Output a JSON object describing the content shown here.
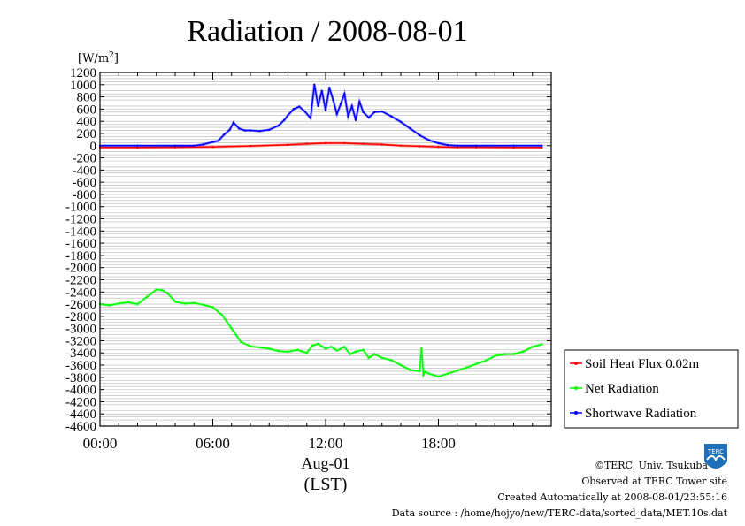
{
  "chart_data": {
    "type": "line",
    "title": "Radiation / 2008-08-01",
    "ylabel": "[W/m²]",
    "ylabel_base": "[W/m",
    "ylabel_sup": "2",
    "ylabel_close": "]",
    "xlabel_date": "Aug-01",
    "xlabel_tz": "(LST)",
    "ylim": [
      -4600,
      1200
    ],
    "xlim_hours": [
      0,
      24
    ],
    "y_ticks": [
      "1200",
      "1000",
      "800",
      "600",
      "400",
      "200",
      "0",
      "-200",
      "-400",
      "-600",
      "-800",
      "-1000",
      "-1200",
      "-1400",
      "-1600",
      "-1800",
      "-2000",
      "-2200",
      "-2400",
      "-2600",
      "-2800",
      "-3000",
      "-3200",
      "-3400",
      "-3600",
      "-3800",
      "-4000",
      "-4200",
      "-4400",
      "-4600"
    ],
    "x_ticks": [
      {
        "hour": 0,
        "label": "00:00"
      },
      {
        "hour": 6,
        "label": "06:00"
      },
      {
        "hour": 12,
        "label": "12:00"
      },
      {
        "hour": 18,
        "label": "18:00"
      }
    ],
    "grid": true,
    "legend_position": "right",
    "series": [
      {
        "name": "Soil Heat Flux 0.02m",
        "color": "#ff0000",
        "x": [
          0,
          2,
          4,
          6,
          8,
          10,
          11,
          12,
          13,
          14,
          15,
          16,
          17,
          18,
          19,
          20,
          22,
          23.5
        ],
        "y": [
          -30,
          -30,
          -25,
          -20,
          -5,
          15,
          30,
          40,
          40,
          30,
          20,
          0,
          -10,
          -20,
          -25,
          -25,
          -30,
          -30
        ]
      },
      {
        "name": "Net Radiation",
        "color": "#00ff00",
        "x": [
          0,
          0.5,
          1,
          1.5,
          2,
          2.5,
          3,
          3.3,
          3.6,
          4,
          4.5,
          5,
          5.5,
          6,
          6.5,
          7,
          7.5,
          8,
          8.5,
          9,
          9.5,
          10,
          10.5,
          11,
          11.3,
          11.6,
          12,
          12.3,
          12.6,
          13,
          13.3,
          13.6,
          14,
          14.3,
          14.6,
          15,
          15.5,
          16,
          16.5,
          17,
          17.1,
          17.2,
          17.3,
          17.5,
          18,
          18.5,
          19,
          19.5,
          20,
          20.5,
          21,
          21.5,
          22,
          22.5,
          23,
          23.5
        ],
        "y": [
          -2600,
          -2620,
          -2590,
          -2570,
          -2600,
          -2480,
          -2360,
          -2370,
          -2420,
          -2560,
          -2590,
          -2580,
          -2610,
          -2650,
          -2780,
          -3000,
          -3220,
          -3290,
          -3310,
          -3330,
          -3370,
          -3380,
          -3350,
          -3400,
          -3280,
          -3250,
          -3330,
          -3300,
          -3360,
          -3300,
          -3420,
          -3380,
          -3350,
          -3480,
          -3420,
          -3480,
          -3520,
          -3600,
          -3680,
          -3700,
          -3320,
          -3760,
          -3710,
          -3740,
          -3790,
          -3740,
          -3690,
          -3640,
          -3580,
          -3530,
          -3450,
          -3420,
          -3420,
          -3380,
          -3300,
          -3260
        ]
      },
      {
        "name": "Shortwave Radiation",
        "color": "#0000ff",
        "x": [
          0,
          2,
          4,
          5,
          5.5,
          6,
          6.3,
          6.6,
          6.9,
          7.1,
          7.4,
          7.7,
          8,
          8.5,
          9,
          9.5,
          9.8,
          10,
          10.3,
          10.6,
          10.9,
          11.2,
          11.4,
          11.6,
          11.8,
          12,
          12.2,
          12.4,
          12.6,
          12.8,
          13,
          13.2,
          13.4,
          13.6,
          13.8,
          14,
          14.3,
          14.6,
          15,
          15.5,
          16,
          16.5,
          17,
          17.5,
          18,
          18.5,
          19,
          20,
          22,
          23.5
        ],
        "y": [
          0,
          0,
          0,
          0,
          20,
          60,
          80,
          180,
          260,
          380,
          280,
          250,
          250,
          240,
          260,
          330,
          420,
          500,
          600,
          640,
          560,
          450,
          1000,
          650,
          900,
          580,
          950,
          750,
          520,
          680,
          850,
          480,
          650,
          420,
          720,
          550,
          460,
          550,
          560,
          480,
          390,
          280,
          170,
          90,
          40,
          10,
          0,
          0,
          0,
          0
        ]
      }
    ]
  },
  "footer": {
    "copyright": "©TERC, Univ. Tsukuba",
    "observed": "Observed at TERC Tower site",
    "created": "Created Automatically at 2008-08-01/23:55:16",
    "source": "Data source : /home/hojyo/new/TERC-data/sorted_data/MET.10s.dat",
    "logo_text": "TERC"
  }
}
